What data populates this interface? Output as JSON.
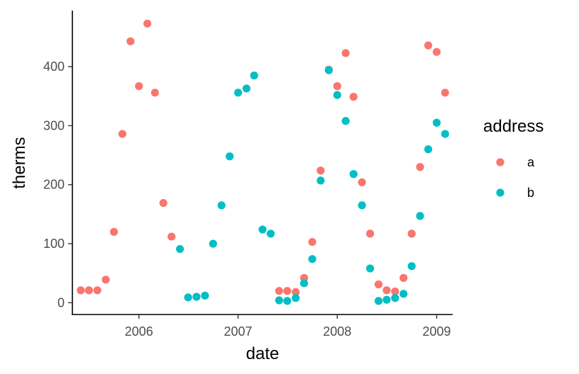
{
  "chart_data": {
    "type": "scatter",
    "title": "",
    "xlabel": "date",
    "ylabel": "therms",
    "x_ticks": [
      "2006",
      "2007",
      "2008",
      "2009"
    ],
    "y_ticks": [
      0,
      100,
      200,
      300,
      400
    ],
    "xlim": [
      "2005-05-01",
      "2009-03-01"
    ],
    "ylim": [
      -20,
      495
    ],
    "grid": false,
    "legend": {
      "title": "address",
      "position": "right"
    },
    "series": [
      {
        "name": "a",
        "color": "#F8766D",
        "points": [
          {
            "x": "2005-06-01",
            "y": 21
          },
          {
            "x": "2005-07-01",
            "y": 21
          },
          {
            "x": "2005-08-01",
            "y": 21
          },
          {
            "x": "2005-09-01",
            "y": 39
          },
          {
            "x": "2005-10-01",
            "y": 120
          },
          {
            "x": "2005-11-01",
            "y": 286
          },
          {
            "x": "2005-12-01",
            "y": 443
          },
          {
            "x": "2006-01-01",
            "y": 367
          },
          {
            "x": "2006-02-01",
            "y": 473
          },
          {
            "x": "2006-03-01",
            "y": 356
          },
          {
            "x": "2006-04-01",
            "y": 169
          },
          {
            "x": "2006-05-01",
            "y": 112
          },
          {
            "x": "2007-06-01",
            "y": 20
          },
          {
            "x": "2007-07-01",
            "y": 20
          },
          {
            "x": "2007-08-01",
            "y": 18
          },
          {
            "x": "2007-09-01",
            "y": 42
          },
          {
            "x": "2007-10-01",
            "y": 103
          },
          {
            "x": "2007-11-01",
            "y": 224
          },
          {
            "x": "2007-12-01",
            "y": 395
          },
          {
            "x": "2008-01-01",
            "y": 367
          },
          {
            "x": "2008-02-01",
            "y": 423
          },
          {
            "x": "2008-03-01",
            "y": 349
          },
          {
            "x": "2008-04-01",
            "y": 204
          },
          {
            "x": "2008-05-01",
            "y": 117
          },
          {
            "x": "2008-06-01",
            "y": 31
          },
          {
            "x": "2008-07-01",
            "y": 21
          },
          {
            "x": "2008-08-01",
            "y": 19
          },
          {
            "x": "2008-09-01",
            "y": 42
          },
          {
            "x": "2008-10-01",
            "y": 117
          },
          {
            "x": "2008-11-01",
            "y": 230
          },
          {
            "x": "2008-12-01",
            "y": 436
          },
          {
            "x": "2009-01-01",
            "y": 425
          },
          {
            "x": "2009-02-01",
            "y": 356
          }
        ]
      },
      {
        "name": "b",
        "color": "#00BFC4",
        "points": [
          {
            "x": "2006-06-01",
            "y": 91
          },
          {
            "x": "2006-07-01",
            "y": 9
          },
          {
            "x": "2006-08-01",
            "y": 10
          },
          {
            "x": "2006-09-01",
            "y": 12
          },
          {
            "x": "2006-10-01",
            "y": 100
          },
          {
            "x": "2006-11-01",
            "y": 165
          },
          {
            "x": "2006-12-01",
            "y": 248
          },
          {
            "x": "2007-01-01",
            "y": 356
          },
          {
            "x": "2007-02-01",
            "y": 363
          },
          {
            "x": "2007-03-01",
            "y": 385
          },
          {
            "x": "2007-04-01",
            "y": 124
          },
          {
            "x": "2007-05-01",
            "y": 117
          },
          {
            "x": "2007-06-01",
            "y": 4
          },
          {
            "x": "2007-07-01",
            "y": 3
          },
          {
            "x": "2007-08-01",
            "y": 8
          },
          {
            "x": "2007-09-01",
            "y": 33
          },
          {
            "x": "2007-10-01",
            "y": 74
          },
          {
            "x": "2007-11-01",
            "y": 207
          },
          {
            "x": "2007-12-01",
            "y": 394
          },
          {
            "x": "2008-01-01",
            "y": 352
          },
          {
            "x": "2008-02-01",
            "y": 308
          },
          {
            "x": "2008-03-01",
            "y": 218
          },
          {
            "x": "2008-04-01",
            "y": 165
          },
          {
            "x": "2008-05-01",
            "y": 58
          },
          {
            "x": "2008-06-01",
            "y": 3
          },
          {
            "x": "2008-07-01",
            "y": 5
          },
          {
            "x": "2008-08-01",
            "y": 8
          },
          {
            "x": "2008-09-01",
            "y": 15
          },
          {
            "x": "2008-10-01",
            "y": 62
          },
          {
            "x": "2008-11-01",
            "y": 147
          },
          {
            "x": "2008-12-01",
            "y": 260
          },
          {
            "x": "2009-01-01",
            "y": 305
          },
          {
            "x": "2009-02-01",
            "y": 286
          }
        ]
      }
    ]
  }
}
